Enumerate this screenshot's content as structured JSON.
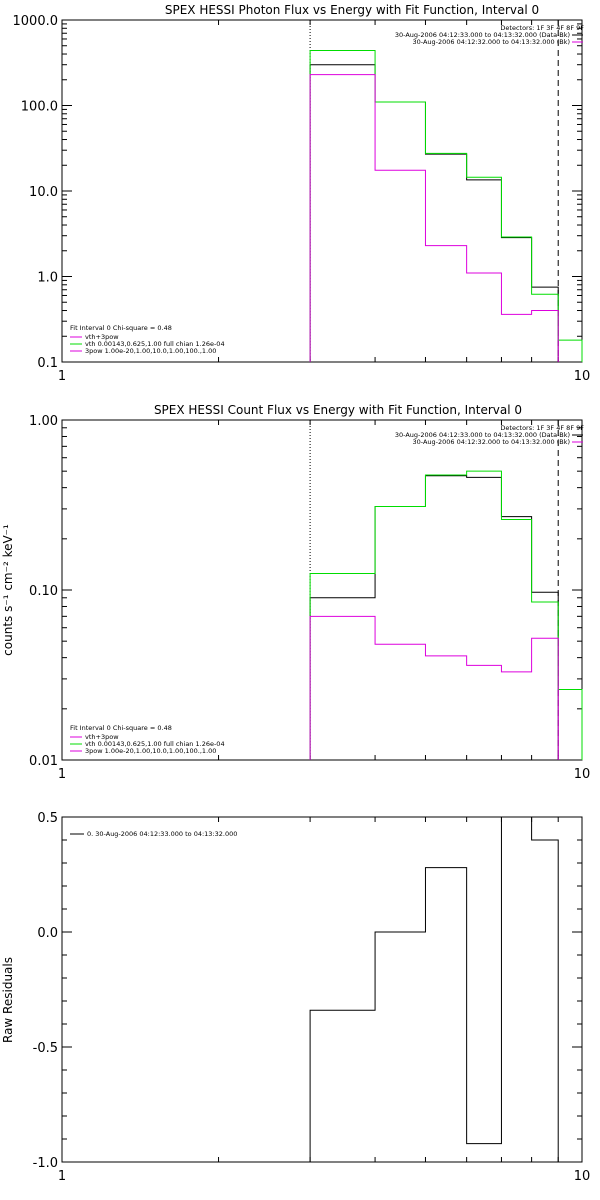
{
  "chart_data": [
    {
      "type": "line",
      "title": "SPEX HESSI Photon Flux vs Energy with Fit Function, Interval 0",
      "xscale": "log",
      "yscale": "log",
      "xlim": [
        1,
        10
      ],
      "ylim": [
        0.1,
        1000
      ],
      "x_tick_labels": [
        "1",
        "10"
      ],
      "y_tick_labels": [
        "0.1",
        "1.0",
        "10.0",
        "100.0",
        "1000.0"
      ],
      "legend_top_right": [
        "Detectors: 1F 3F 4F 8F 9F",
        "30-Aug-2006 04:12:33.000 to 04:13:32.000 (Data-Bk)",
        "30-Aug-2006 04:12:32.000 to 04:13:32.000 (Bk)"
      ],
      "legend_bottom_left": [
        "Fit Interval 0   Chi-square = 0.48",
        "vth+3pow",
        "vth 0.00143,0.625,1.00  full chian 1.26e-04",
        "3pow 1.00e-20,1.00,10.0,1.00,100.,1.00"
      ],
      "vlines": [
        {
          "x": 3.0,
          "style": "dotted"
        },
        {
          "x": 9.0,
          "style": "dashed"
        }
      ],
      "series": [
        {
          "name": "Data-Bk",
          "color": "#000000",
          "edges": [
            3,
            4,
            5,
            6,
            7,
            8,
            9
          ],
          "values": [
            300,
            110,
            27,
            13.5,
            2.85,
            0.75
          ]
        },
        {
          "name": "vth+3pow",
          "color": "#00dd00",
          "edges": [
            3,
            4,
            5,
            6,
            7,
            8,
            9,
            10
          ],
          "values": [
            440,
            110,
            27.5,
            14.5,
            2.9,
            0.62,
            0.18
          ]
        },
        {
          "name": "Bk",
          "color": "#dd00dd",
          "edges": [
            3,
            4,
            5,
            6,
            7,
            8,
            9
          ],
          "values": [
            230,
            17.5,
            2.3,
            1.1,
            0.36,
            0.4
          ]
        }
      ]
    },
    {
      "type": "line",
      "title": "SPEX HESSI Count Flux vs Energy with Fit Function, Interval 0",
      "ylabel": "counts s⁻¹ cm⁻² keV⁻¹",
      "xscale": "log",
      "yscale": "log",
      "xlim": [
        1,
        10
      ],
      "ylim": [
        0.01,
        1.0
      ],
      "x_tick_labels": [
        "1",
        "10"
      ],
      "y_tick_labels": [
        "0.01",
        "0.10",
        "1.00"
      ],
      "legend_top_right": [
        "Detectors: 1F 3F 4F 8F 9F",
        "30-Aug-2006 04:12:33.000 to 04:13:32.000 (Data-Bk)",
        "30-Aug-2006 04:12:32.000 to 04:13:32.000 (Bk)"
      ],
      "legend_bottom_left": [
        "Fit Interval 0   Chi-square = 0.48",
        "vth+3pow",
        "vth 0.00143,0.625,1.00  full chian 1.26e-04",
        "3pow 1.00e-20,1.00,10.0,1.00,100.,1.00"
      ],
      "vlines": [
        {
          "x": 3.0,
          "style": "dotted"
        },
        {
          "x": 9.0,
          "style": "dashed"
        }
      ],
      "series": [
        {
          "name": "Data-Bk",
          "color": "#000000",
          "edges": [
            3,
            4,
            5,
            6,
            7,
            8,
            9
          ],
          "values": [
            0.09,
            0.31,
            0.47,
            0.46,
            0.27,
            0.097
          ]
        },
        {
          "name": "vth+3pow",
          "color": "#00dd00",
          "edges": [
            3,
            4,
            5,
            6,
            7,
            8,
            9,
            10
          ],
          "values": [
            0.125,
            0.31,
            0.475,
            0.5,
            0.26,
            0.085,
            0.026
          ]
        },
        {
          "name": "Bk",
          "color": "#dd00dd",
          "edges": [
            3,
            4,
            5,
            6,
            7,
            8,
            9
          ],
          "values": [
            0.07,
            0.048,
            0.041,
            0.036,
            0.033,
            0.052
          ]
        }
      ]
    },
    {
      "type": "line",
      "title": "",
      "ylabel": "Raw Residuals",
      "xscale": "log",
      "yscale": "linear",
      "xlim": [
        1,
        10
      ],
      "ylim": [
        -1.0,
        0.5
      ],
      "x_tick_labels": [
        "1",
        "10"
      ],
      "y_tick_labels": [
        "-1.0",
        "-0.5",
        "0.0",
        "0.5"
      ],
      "legend_top_left": [
        "0. 30-Aug-2006 04:12:33.000 to 04:13:32.000"
      ],
      "series": [
        {
          "name": "0. 30-Aug-2006 04:12:33.000 to 04:13:32.000",
          "color": "#000000",
          "edges": [
            3,
            4,
            5,
            6,
            7,
            8,
            9
          ],
          "values": [
            -0.34,
            0.0,
            0.28,
            -0.92,
            0.5,
            0.4
          ]
        }
      ]
    }
  ]
}
